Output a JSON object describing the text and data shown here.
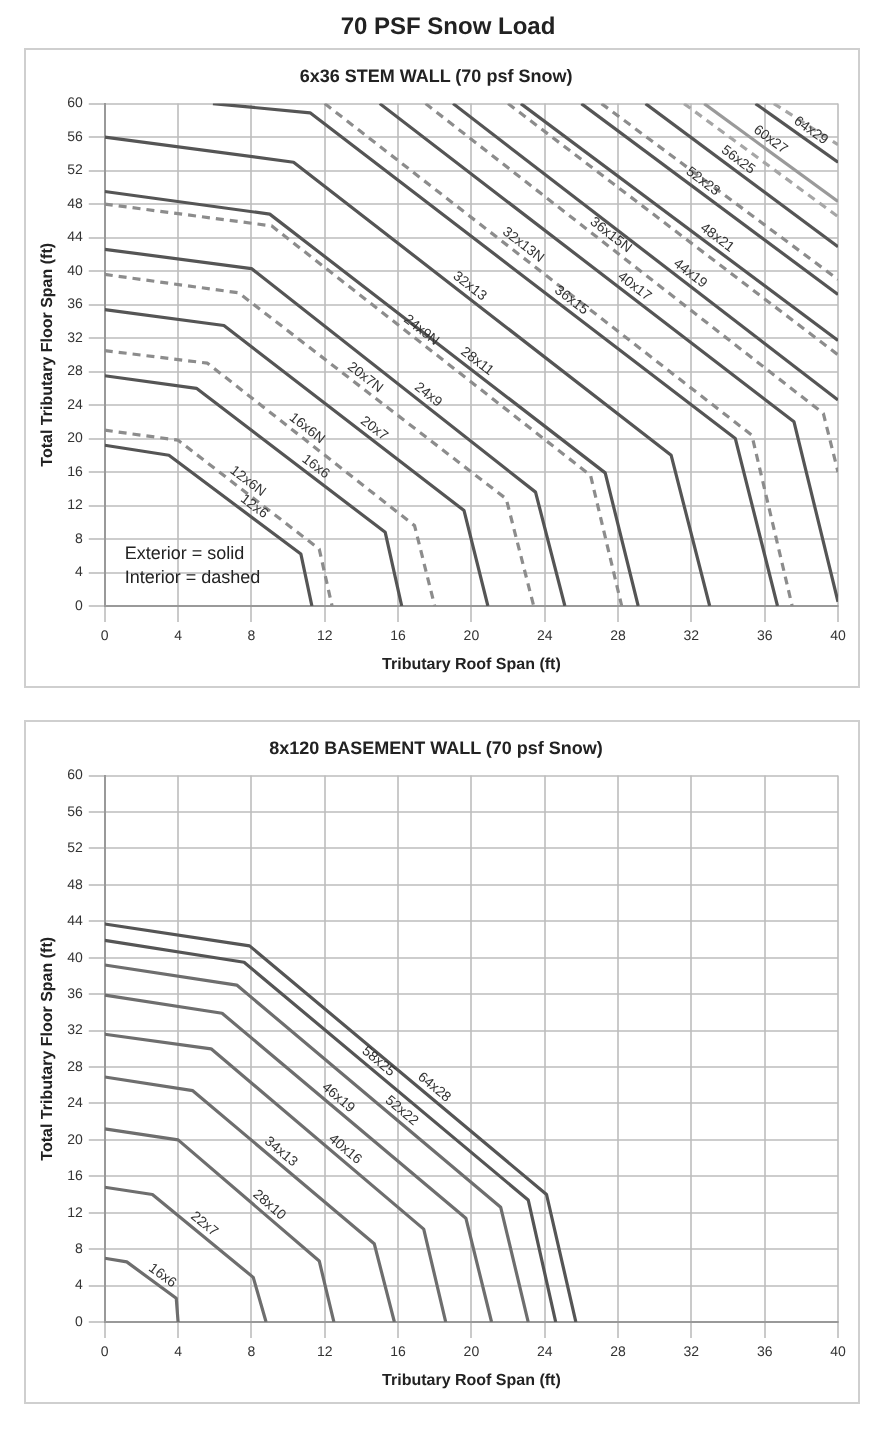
{
  "chart_data": [
    {
      "type": "line",
      "title": "70 PSF Snow Load",
      "subtitle": "6x36 STEM WALL (70 psf Snow)",
      "xlabel": "Tributary Roof Span (ft)",
      "ylabel": "Total Tributary Floor Span (ft)",
      "xlim": [
        0,
        40
      ],
      "ylim": [
        0,
        60
      ],
      "xticks": [
        0,
        4,
        8,
        12,
        16,
        20,
        24,
        28,
        32,
        36,
        40
      ],
      "yticks": [
        0,
        4,
        8,
        12,
        16,
        20,
        24,
        28,
        32,
        36,
        40,
        44,
        48,
        52,
        56,
        60
      ],
      "grid": true,
      "legend": false,
      "marker": "none",
      "annotations": [
        "Exterior = solid",
        "Interior = dashed"
      ],
      "series": [
        {
          "name": "12x6",
          "color": "#555555",
          "line_style": "solid",
          "x": [
            0,
            3.5,
            10.7,
            11.3
          ],
          "values": [
            19.2,
            18,
            6.2,
            0
          ]
        },
        {
          "name": "12x6N",
          "color": "#8c8c8c",
          "line_style": "dashed",
          "x": [
            0,
            4,
            11.7,
            12.4
          ],
          "values": [
            21,
            19.8,
            6.8,
            0
          ]
        },
        {
          "name": "16x6",
          "color": "#555555",
          "line_style": "solid",
          "x": [
            0,
            5,
            15.3,
            16.2
          ],
          "values": [
            27.5,
            26,
            8.8,
            0
          ]
        },
        {
          "name": "16x6N",
          "color": "#8c8c8c",
          "line_style": "dashed",
          "x": [
            0,
            5.6,
            16.9,
            18
          ],
          "values": [
            30.5,
            29,
            9.6,
            0
          ]
        },
        {
          "name": "20x7",
          "color": "#555555",
          "line_style": "solid",
          "x": [
            0,
            6.5,
            19.6,
            20.9
          ],
          "values": [
            35.4,
            33.5,
            11.4,
            0
          ]
        },
        {
          "name": "20x7N",
          "color": "#8c8c8c",
          "line_style": "dashed",
          "x": [
            0,
            7.3,
            21.9,
            23.4
          ],
          "values": [
            39.6,
            37.4,
            12.8,
            0
          ]
        },
        {
          "name": "24x9",
          "color": "#555555",
          "line_style": "solid",
          "x": [
            0,
            8,
            23.5,
            25.1
          ],
          "values": [
            42.6,
            40.3,
            13.6,
            0
          ]
        },
        {
          "name": "24x9N",
          "color": "#8c8c8c",
          "line_style": "dashed",
          "x": [
            0,
            9.1,
            26.5,
            28.2
          ],
          "values": [
            48,
            45.4,
            15.6,
            0
          ]
        },
        {
          "name": "28x11",
          "color": "#555555",
          "line_style": "solid",
          "x": [
            0,
            9,
            27.3,
            29.1
          ],
          "values": [
            49.5,
            46.8,
            15.9,
            0
          ]
        },
        {
          "name": "32x13",
          "color": "#555555",
          "line_style": "solid",
          "x": [
            0,
            10.3,
            30.9,
            33
          ],
          "values": [
            56,
            53,
            18,
            0
          ]
        },
        {
          "name": "36x15",
          "color": "#555555",
          "line_style": "solid",
          "x": [
            5.9,
            11.2,
            34.4,
            36.7
          ],
          "values": [
            60,
            58.9,
            20,
            0
          ]
        },
        {
          "name": "32x13N",
          "color": "#8c8c8c",
          "line_style": "dashed",
          "x": [
            12,
            35.3,
            37.5
          ],
          "values": [
            60,
            20.4,
            0
          ]
        },
        {
          "name": "40x17",
          "color": "#555555",
          "line_style": "solid",
          "x": [
            15,
            37.6,
            40
          ],
          "values": [
            60,
            22,
            0.5
          ]
        },
        {
          "name": "36x15N",
          "color": "#8c8c8c",
          "line_style": "dashed",
          "x": [
            17.5,
            39.2,
            40
          ],
          "values": [
            60,
            23,
            16
          ]
        },
        {
          "name": "44x19",
          "color": "#555555",
          "line_style": "solid",
          "x": [
            19,
            40
          ],
          "values": [
            60,
            24.6
          ]
        },
        {
          "color": "#8c8c8c",
          "line_style": "dashed",
          "x": [
            22,
            40
          ],
          "values": [
            60,
            30
          ]
        },
        {
          "name": "48x21",
          "color": "#555555",
          "line_style": "solid",
          "x": [
            22.7,
            40
          ],
          "values": [
            60,
            31.7
          ]
        },
        {
          "name": "52x23",
          "color": "#555555",
          "line_style": "solid",
          "x": [
            26,
            40
          ],
          "values": [
            60,
            37.2
          ]
        },
        {
          "color": "#8c8c8c",
          "line_style": "dashed",
          "x": [
            27.1,
            40
          ],
          "values": [
            60,
            39
          ]
        },
        {
          "name": "56x25",
          "color": "#555555",
          "line_style": "solid",
          "x": [
            29.5,
            40
          ],
          "values": [
            60,
            42.9
          ]
        },
        {
          "color": "#a6a6a6",
          "line_style": "dashed",
          "x": [
            31.6,
            40
          ],
          "values": [
            60,
            46.5
          ]
        },
        {
          "name": "60x27",
          "color": "#9a9a9a",
          "line_style": "solid",
          "x": [
            32.7,
            40
          ],
          "values": [
            60,
            48.3
          ]
        },
        {
          "name": "64x29",
          "color": "#555555",
          "line_style": "solid",
          "x": [
            35.5,
            40
          ],
          "values": [
            60,
            53
          ]
        },
        {
          "color": "#a6a6a6",
          "line_style": "dashed",
          "x": [
            36.5,
            40
          ],
          "values": [
            60,
            55.1
          ]
        }
      ]
    },
    {
      "type": "line",
      "title": "8x120 BASEMENT WALL (70 psf Snow)",
      "xlabel": "Tributary Roof Span (ft)",
      "ylabel": "Total Tributary Floor Span (ft)",
      "xlim": [
        0,
        40
      ],
      "ylim": [
        0,
        60
      ],
      "xticks": [
        0,
        4,
        8,
        12,
        16,
        20,
        24,
        28,
        32,
        36,
        40
      ],
      "yticks": [
        0,
        4,
        8,
        12,
        16,
        20,
        24,
        28,
        32,
        36,
        40,
        44,
        48,
        52,
        56,
        60
      ],
      "grid": true,
      "legend": false,
      "marker": "none",
      "series": [
        {
          "name": "16x6",
          "color": "#6e6e6e",
          "line_style": "solid",
          "x": [
            0,
            1.2,
            3.9,
            4
          ],
          "values": [
            7,
            6.6,
            2.6,
            0
          ]
        },
        {
          "name": "22x7",
          "color": "#6e6e6e",
          "line_style": "solid",
          "x": [
            0,
            2.6,
            8.1,
            8.8
          ],
          "values": [
            14.8,
            14,
            4.9,
            0
          ]
        },
        {
          "name": "28x10",
          "color": "#6e6e6e",
          "line_style": "solid",
          "x": [
            0,
            4,
            11.7,
            12.5
          ],
          "values": [
            21.2,
            20,
            6.7,
            0
          ]
        },
        {
          "name": "34x13",
          "color": "#6e6e6e",
          "line_style": "solid",
          "x": [
            0,
            4.8,
            14.7,
            15.8
          ],
          "values": [
            26.9,
            25.4,
            8.6,
            0
          ]
        },
        {
          "name": "40x16",
          "color": "#6e6e6e",
          "line_style": "solid",
          "x": [
            0,
            5.8,
            17.4,
            18.6
          ],
          "values": [
            31.6,
            30,
            10.2,
            0
          ]
        },
        {
          "name": "46x19",
          "color": "#6e6e6e",
          "line_style": "solid",
          "x": [
            0,
            6.4,
            19.7,
            21.1
          ],
          "values": [
            35.9,
            33.9,
            11.4,
            0
          ]
        },
        {
          "name": "52x22",
          "color": "#6e6e6e",
          "line_style": "solid",
          "x": [
            0,
            7.2,
            21.6,
            23.1
          ],
          "values": [
            39.2,
            37,
            12.6,
            0
          ]
        },
        {
          "name": "58x25",
          "color": "#555555",
          "line_style": "solid",
          "x": [
            0,
            7.6,
            23.1,
            24.6
          ],
          "values": [
            41.9,
            39.5,
            13.4,
            0
          ]
        },
        {
          "name": "64x28",
          "color": "#555555",
          "line_style": "solid",
          "x": [
            0,
            7.9,
            24.1,
            25.7
          ],
          "values": [
            43.7,
            41.3,
            14,
            0
          ]
        }
      ]
    }
  ]
}
